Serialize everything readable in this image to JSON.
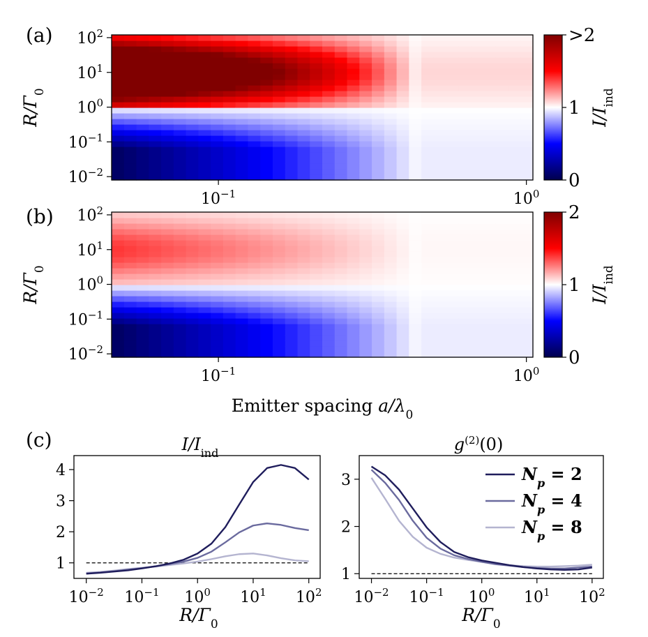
{
  "chart_data": [
    {
      "type": "heatmap",
      "panel_label": "(a)",
      "xscale": "log",
      "yscale": "log",
      "xlim": [
        0.045,
        1.05
      ],
      "ylim": [
        0.008,
        120
      ],
      "x_ticks": [
        {
          "value": 0.1,
          "base": "10",
          "exp": "−1"
        },
        {
          "value": 1,
          "base": "10",
          "exp": "0"
        }
      ],
      "y_ticks": [
        {
          "value": 100,
          "base": "10",
          "exp": "2"
        },
        {
          "value": 10,
          "base": "10",
          "exp": "1"
        },
        {
          "value": 1,
          "base": "10",
          "exp": "0"
        },
        {
          "value": 0.1,
          "base": "10",
          "exp": "−1"
        },
        {
          "value": 0.01,
          "base": "10",
          "exp": "−2"
        }
      ],
      "ylabel": "R/Γ₀",
      "colorbar": {
        "label": "I/I_ind",
        "label_main": "I/I",
        "label_sub": "ind",
        "range": [
          0,
          2
        ],
        "ticks": [
          {
            "value": 0,
            "label": "0"
          },
          {
            "value": 1,
            "label": "1"
          },
          {
            "value": 2,
            "label": ">2"
          }
        ],
        "cmap": "seismic"
      },
      "pattern": {
        "enhancement_peak": 3.0,
        "suppression_min": 0.05,
        "crossover_R": 1.0,
        "coherence_spacing": 0.45
      }
    },
    {
      "type": "heatmap",
      "panel_label": "(b)",
      "xscale": "log",
      "yscale": "log",
      "xlim": [
        0.045,
        1.05
      ],
      "ylim": [
        0.008,
        120
      ],
      "x_ticks": [
        {
          "value": 0.1,
          "base": "10",
          "exp": "−1"
        },
        {
          "value": 1,
          "base": "10",
          "exp": "0"
        }
      ],
      "y_ticks": [
        {
          "value": 100,
          "base": "10",
          "exp": "2"
        },
        {
          "value": 10,
          "base": "10",
          "exp": "1"
        },
        {
          "value": 1,
          "base": "10",
          "exp": "0"
        },
        {
          "value": 0.1,
          "base": "10",
          "exp": "−1"
        },
        {
          "value": 0.01,
          "base": "10",
          "exp": "−2"
        }
      ],
      "xlabel": "Emitter spacing a/λ₀",
      "xlabel_text": "Emitter spacing ",
      "xlabel_math": "a/λ",
      "xlabel_sub": "0",
      "ylabel": "R/Γ₀",
      "colorbar": {
        "label": "I/I_ind",
        "label_main": "I/I",
        "label_sub": "ind",
        "range": [
          0,
          2
        ],
        "ticks": [
          {
            "value": 0,
            "label": "0"
          },
          {
            "value": 1,
            "label": "1"
          },
          {
            "value": 2,
            "label": "2"
          }
        ],
        "cmap": "seismic"
      },
      "pattern": {
        "enhancement_peak": 1.4,
        "suppression_min": 0.05,
        "crossover_R": 1.0,
        "coherence_spacing": 0.45
      }
    },
    {
      "type": "line",
      "panel_label": "(c)",
      "title": "I/I_ind",
      "title_main": "I/I",
      "title_sub": "ind",
      "xscale": "log",
      "xlim": [
        0.006,
        160
      ],
      "ylim": [
        0.5,
        4.45
      ],
      "x_ticks": [
        {
          "value": 0.01,
          "base": "10",
          "exp": "−2"
        },
        {
          "value": 0.1,
          "base": "10",
          "exp": "−1"
        },
        {
          "value": 1,
          "base": "10",
          "exp": "0"
        },
        {
          "value": 10,
          "base": "10",
          "exp": "1"
        },
        {
          "value": 100,
          "base": "10",
          "exp": "2"
        }
      ],
      "y_ticks": [
        1,
        2,
        3,
        4
      ],
      "xlabel": "R/Γ₀",
      "reference_line": 1,
      "x": [
        0.01,
        0.0178,
        0.0316,
        0.0562,
        0.1,
        0.178,
        0.316,
        0.562,
        1,
        1.78,
        3.16,
        5.62,
        10,
        17.8,
        31.6,
        56.2,
        100
      ],
      "series": [
        {
          "name": "N_p = 2",
          "color": "#1f1d5c",
          "values": [
            0.65,
            0.68,
            0.72,
            0.76,
            0.82,
            0.89,
            0.98,
            1.1,
            1.3,
            1.62,
            2.15,
            2.88,
            3.6,
            4.05,
            4.15,
            4.05,
            3.68
          ]
        },
        {
          "name": "N_p = 4",
          "color": "#6a6a9e",
          "values": [
            0.66,
            0.69,
            0.73,
            0.78,
            0.83,
            0.89,
            0.96,
            1.04,
            1.16,
            1.36,
            1.66,
            1.98,
            2.2,
            2.27,
            2.22,
            2.12,
            2.05
          ]
        },
        {
          "name": "N_p = 8",
          "color": "#b4b4d0",
          "values": [
            0.68,
            0.71,
            0.75,
            0.8,
            0.84,
            0.88,
            0.93,
            0.98,
            1.04,
            1.12,
            1.21,
            1.28,
            1.3,
            1.24,
            1.15,
            1.08,
            1.05
          ]
        }
      ]
    },
    {
      "type": "line",
      "title": "g⁽²⁾(0)",
      "title_main": "g",
      "title_sup": "(2)",
      "title_tail": "(0)",
      "xscale": "log",
      "xlim": [
        0.006,
        160
      ],
      "ylim": [
        0.9,
        3.5
      ],
      "x_ticks": [
        {
          "value": 0.01,
          "base": "10",
          "exp": "−2"
        },
        {
          "value": 0.1,
          "base": "10",
          "exp": "−1"
        },
        {
          "value": 1,
          "base": "10",
          "exp": "0"
        },
        {
          "value": 10,
          "base": "10",
          "exp": "1"
        },
        {
          "value": 100,
          "base": "10",
          "exp": "2"
        }
      ],
      "y_ticks": [
        1,
        2,
        3
      ],
      "xlabel": "R/Γ₀",
      "reference_line": 1,
      "legend_position": "top-right",
      "x": [
        0.01,
        0.0178,
        0.0316,
        0.0562,
        0.1,
        0.178,
        0.316,
        0.562,
        1,
        1.78,
        3.16,
        5.62,
        10,
        17.8,
        31.6,
        56.2,
        100
      ],
      "series": [
        {
          "name": "N_p = 2",
          "label_main": "N",
          "label_sub": "p",
          "label_tail": " = 2",
          "color": "#1f1d5c",
          "values": [
            3.27,
            3.08,
            2.78,
            2.38,
            1.98,
            1.67,
            1.46,
            1.35,
            1.28,
            1.23,
            1.18,
            1.14,
            1.11,
            1.09,
            1.08,
            1.09,
            1.13
          ]
        },
        {
          "name": "N_p = 4",
          "label_main": "N",
          "label_sub": "p",
          "label_tail": " = 4",
          "color": "#6a6a9e",
          "values": [
            3.2,
            2.92,
            2.56,
            2.12,
            1.76,
            1.53,
            1.39,
            1.31,
            1.25,
            1.2,
            1.17,
            1.14,
            1.12,
            1.11,
            1.11,
            1.13,
            1.15
          ]
        },
        {
          "name": "N_p = 8",
          "label_main": "N",
          "label_sub": "p",
          "label_tail": " = 8",
          "color": "#b4b4d0",
          "values": [
            3.03,
            2.58,
            2.12,
            1.78,
            1.55,
            1.42,
            1.34,
            1.29,
            1.25,
            1.21,
            1.18,
            1.16,
            1.15,
            1.15,
            1.16,
            1.17,
            1.19
          ]
        }
      ]
    }
  ]
}
